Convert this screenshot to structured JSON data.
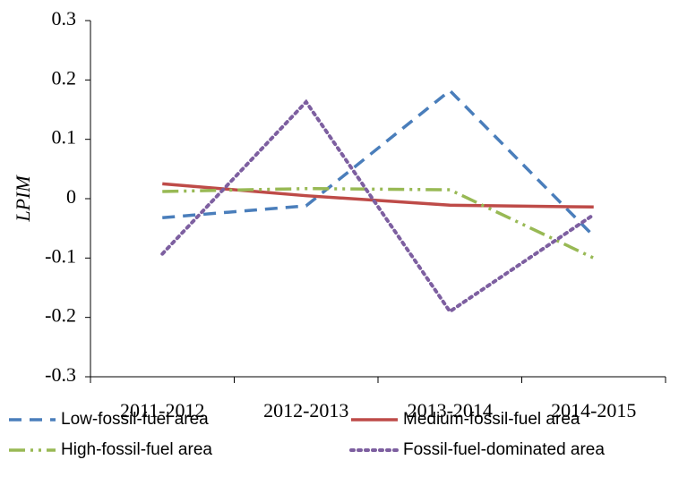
{
  "chart_data": {
    "type": "line",
    "y_label": "LPIM",
    "categories": [
      "2011-2012",
      "2012-2013",
      "2013-2014",
      "2014-2015"
    ],
    "series": [
      {
        "name": "Low-fossil-fuel area",
        "color": "#4a7ebb",
        "dash": "14,9",
        "values": [
          -0.032,
          -0.012,
          0.182,
          -0.063
        ]
      },
      {
        "name": "Medium-fossil-fuel area",
        "color": "#be4b48",
        "dash": "none",
        "values": [
          0.025,
          0.005,
          -0.011,
          -0.014
        ]
      },
      {
        "name": "High-fossil-fuel area",
        "color": "#98b954",
        "dash": "18,6,3,6,3,6",
        "values": [
          0.012,
          0.017,
          0.015,
          -0.1
        ]
      },
      {
        "name": "Fossil-fuel-dominated area",
        "color": "#7d5fa0",
        "dash": "3,5",
        "values": [
          -0.093,
          0.163,
          -0.19,
          -0.027
        ]
      }
    ],
    "ylim": [
      -0.3,
      0.3
    ],
    "yticks": [
      -0.3,
      -0.2,
      -0.1,
      0,
      0.1,
      0.2,
      0.3
    ],
    "grid": false,
    "legend": "bottom"
  }
}
